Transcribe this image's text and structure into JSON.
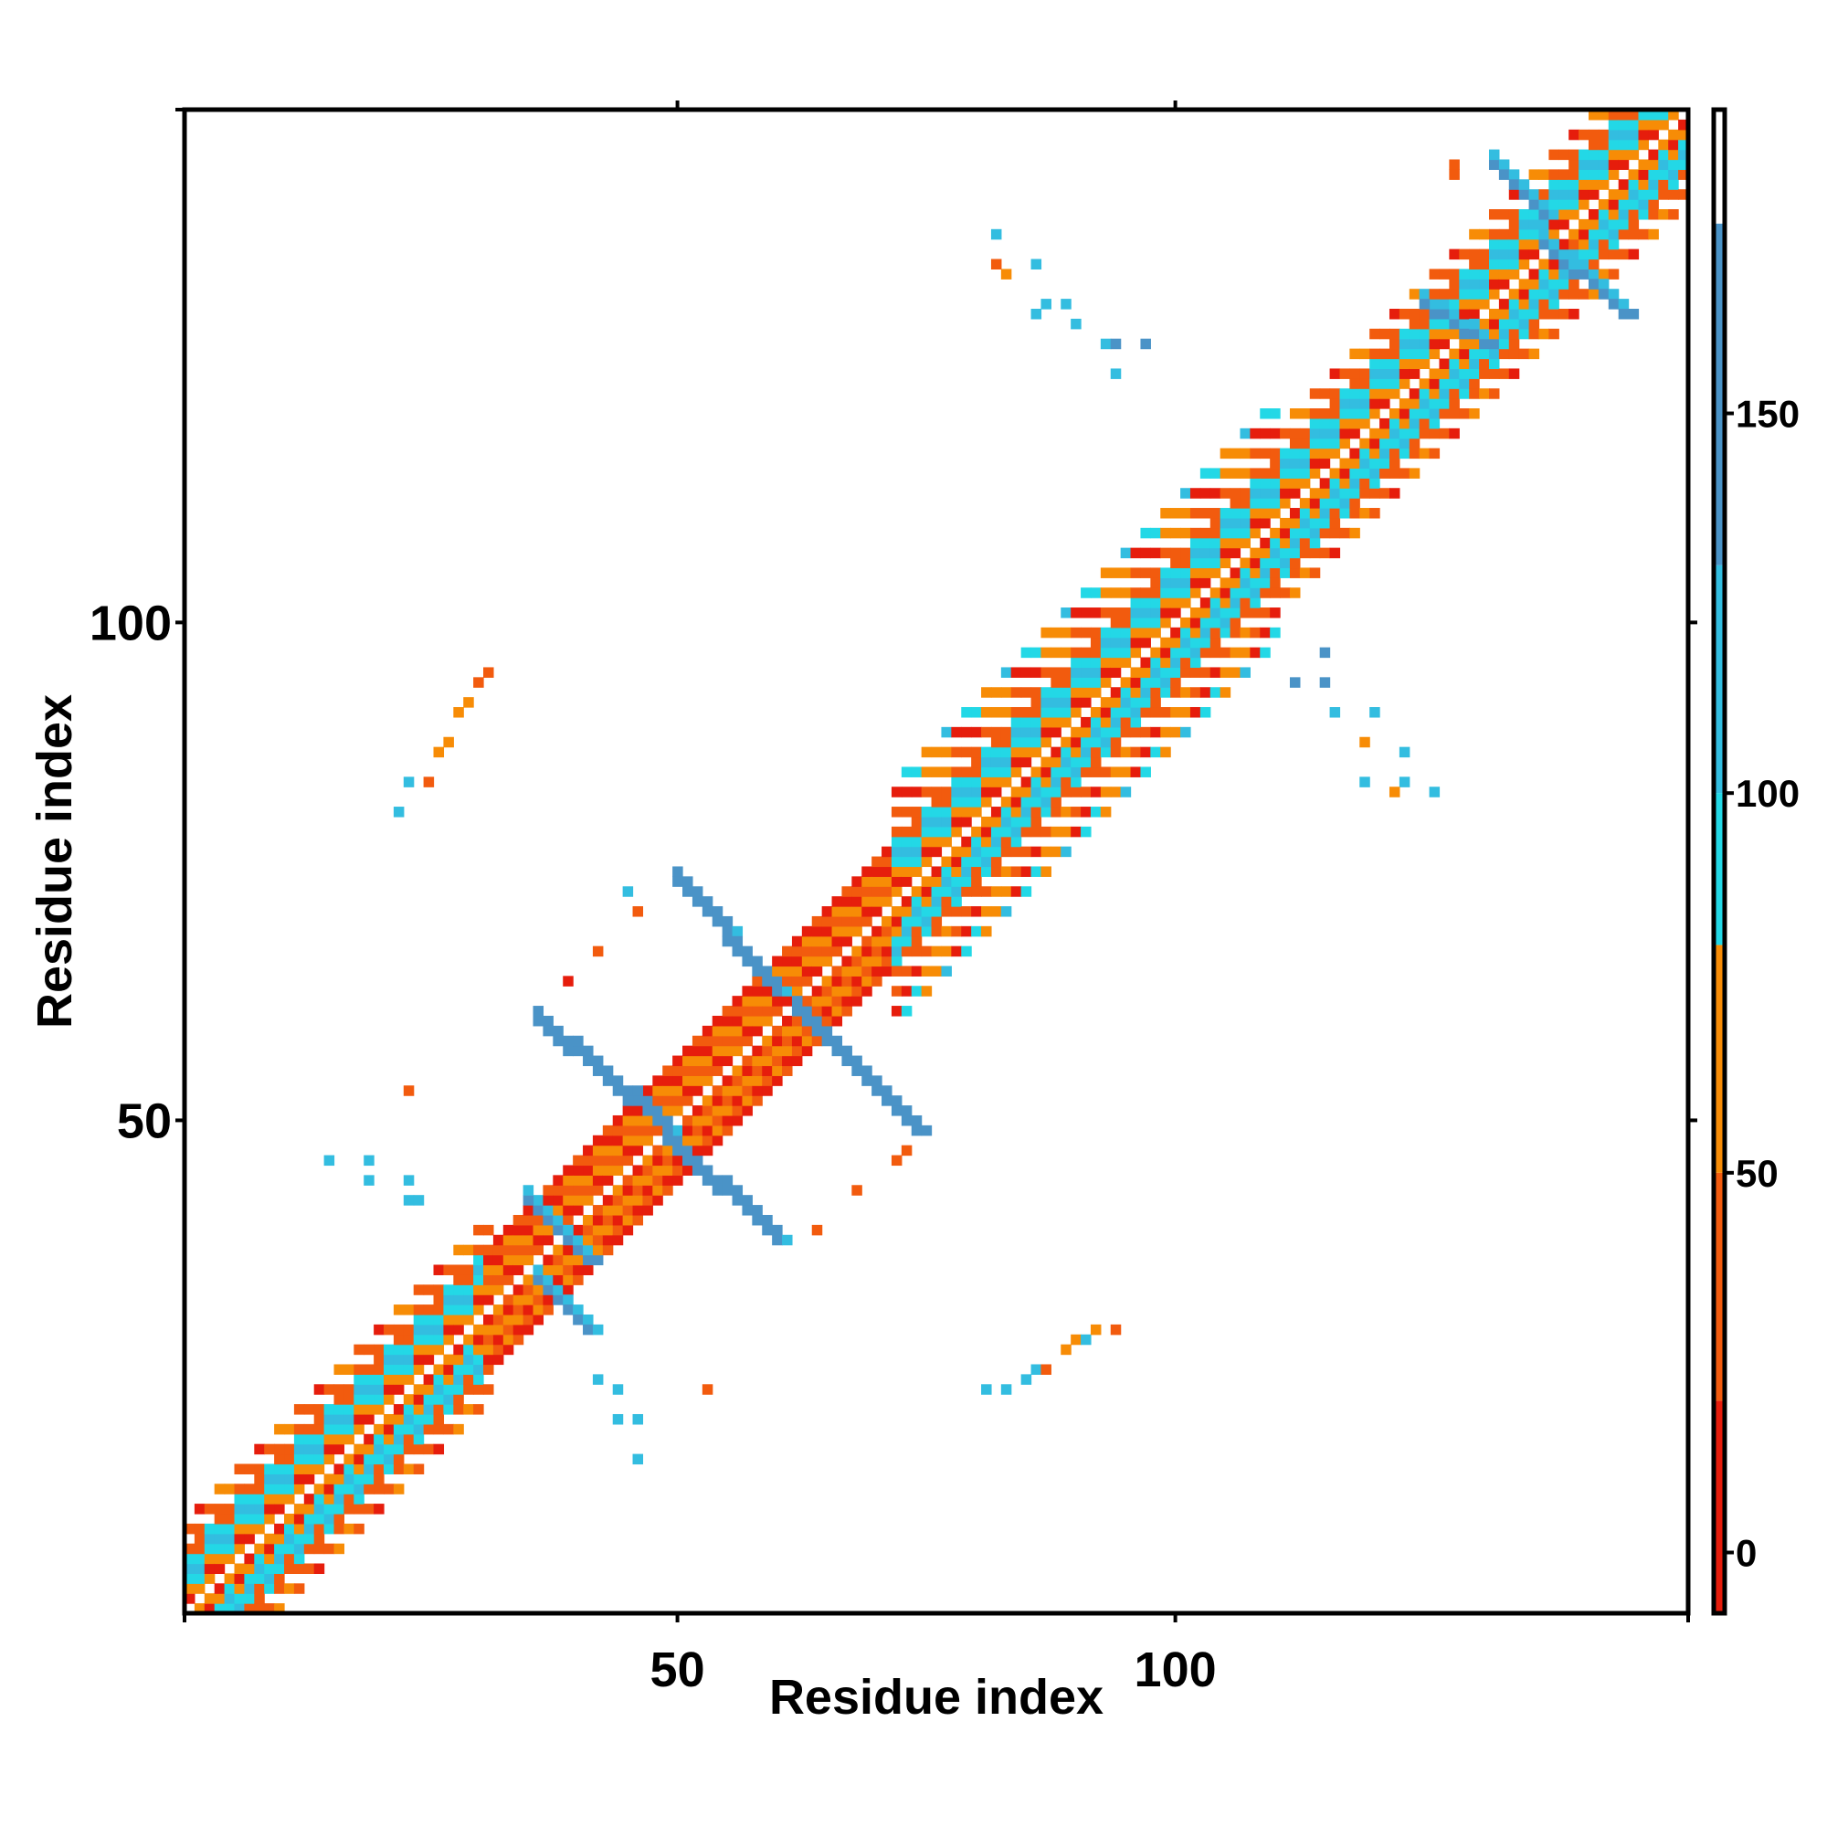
{
  "chart_data": {
    "type": "heatmap",
    "title": "",
    "xlabel": "Residue index",
    "ylabel": "Residue index",
    "xlim": [
      1,
      151
    ],
    "ylim": [
      1,
      151
    ],
    "x_ticks": [
      50,
      100
    ],
    "y_ticks": [
      50,
      100
    ],
    "x_tick_labels": [
      "50",
      "100"
    ],
    "y_tick_labels": [
      "50",
      "100"
    ],
    "colorbar": {
      "range": [
        -8,
        190
      ],
      "ticks": [
        0,
        50,
        100,
        150
      ],
      "tick_labels": [
        "0",
        "50",
        "100",
        "150"
      ],
      "segments": [
        {
          "from": -8,
          "to": 20,
          "color": "#e61d0c"
        },
        {
          "from": 20,
          "to": 50,
          "color": "#f25b0e"
        },
        {
          "from": 50,
          "to": 80,
          "color": "#f78c06"
        },
        {
          "from": 80,
          "to": 100,
          "color": "#23d8e6"
        },
        {
          "from": 100,
          "to": 130,
          "color": "#33bde0"
        },
        {
          "from": 130,
          "to": 175,
          "color": "#4a93c7"
        },
        {
          "from": 175,
          "to": 190,
          "color": "#ffffff"
        }
      ]
    },
    "diagonal_bands": [
      {
        "start": 1,
        "end": 31,
        "offsets": [
          -9,
          9
        ],
        "value_profile": [
          20,
          55,
          10,
          60,
          90,
          110,
          95,
          40,
          30
        ]
      },
      {
        "start": 31,
        "end": 72,
        "offsets": [
          -6,
          6
        ],
        "value_profile": [
          15,
          40,
          10,
          60,
          30,
          70
        ]
      },
      {
        "start": 72,
        "end": 110,
        "offsets": [
          -12,
          12
        ],
        "value_profile": [
          20,
          55,
          10,
          60,
          90,
          110,
          95,
          40,
          30
        ]
      },
      {
        "start": 110,
        "end": 151,
        "offsets": [
          -9,
          9
        ],
        "value_profile": [
          20,
          55,
          10,
          60,
          90,
          110,
          95,
          40,
          30
        ]
      }
    ],
    "antiparallel_segments": [
      {
        "x1": 35,
        "y1": 42,
        "x2": 41,
        "y2": 36,
        "value": 145
      },
      {
        "x1": 36,
        "y1": 34,
        "x2": 41,
        "y2": 29,
        "value": 145
      },
      {
        "x1": 36,
        "y1": 60,
        "x2": 49,
        "y2": 49,
        "value": 150
      },
      {
        "x1": 49,
        "y1": 48,
        "x2": 60,
        "y2": 38,
        "value": 150
      },
      {
        "x1": 50,
        "y1": 74,
        "x2": 60,
        "y2": 63,
        "value": 150
      },
      {
        "x1": 62,
        "y1": 61,
        "x2": 74,
        "y2": 49,
        "value": 150
      },
      {
        "x1": 132,
        "y1": 146,
        "x2": 137,
        "y2": 141,
        "value": 145
      },
      {
        "x1": 137,
        "y1": 138,
        "x2": 145,
        "y2": 131,
        "value": 145
      },
      {
        "x1": 125,
        "y1": 132,
        "x2": 131,
        "y2": 128,
        "value": 140
      }
    ],
    "scattered_contacts": [
      [
        22,
        81,
        105
      ],
      [
        23,
        84,
        105
      ],
      [
        25,
        84,
        45
      ],
      [
        26,
        87,
        60
      ],
      [
        27,
        88,
        70
      ],
      [
        28,
        91,
        65
      ],
      [
        29,
        92,
        70
      ],
      [
        30,
        94,
        40
      ],
      [
        31,
        95,
        20
      ],
      [
        45,
        73,
        100
      ],
      [
        46,
        71,
        30
      ],
      [
        42,
        67,
        30
      ],
      [
        39,
        64,
        15
      ],
      [
        23,
        53,
        30
      ],
      [
        15,
        46,
        110
      ],
      [
        19,
        46,
        110
      ],
      [
        19,
        44,
        110
      ],
      [
        23,
        44,
        110
      ],
      [
        23,
        42,
        110
      ],
      [
        24,
        42,
        110
      ],
      [
        42,
        24,
        110
      ],
      [
        44,
        23,
        110
      ],
      [
        44,
        20,
        110
      ],
      [
        46,
        20,
        110
      ],
      [
        46,
        16,
        110
      ],
      [
        53,
        23,
        30
      ],
      [
        81,
        23,
        105
      ],
      [
        83,
        23,
        105
      ],
      [
        85,
        24,
        100
      ],
      [
        86,
        25,
        100
      ],
      [
        87,
        25,
        40
      ],
      [
        89,
        27,
        60
      ],
      [
        90,
        28,
        70
      ],
      [
        91,
        28,
        100
      ],
      [
        92,
        29,
        60
      ],
      [
        94,
        29,
        20
      ],
      [
        82,
        139,
        105
      ],
      [
        82,
        136,
        45
      ],
      [
        83,
        135,
        70
      ],
      [
        86,
        136,
        105
      ],
      [
        86,
        131,
        105
      ],
      [
        87,
        132,
        110
      ],
      [
        89,
        132,
        105
      ],
      [
        90,
        130,
        105
      ],
      [
        93,
        128,
        105
      ],
      [
        94,
        128,
        145
      ],
      [
        97,
        128,
        140
      ],
      [
        94,
        125,
        110
      ],
      [
        115,
        97,
        145
      ],
      [
        112,
        94,
        130
      ],
      [
        115,
        94,
        130
      ],
      [
        116,
        91,
        110
      ],
      [
        120,
        91,
        105
      ],
      [
        119,
        88,
        60
      ],
      [
        123,
        87,
        110
      ],
      [
        119,
        84,
        110
      ],
      [
        123,
        84,
        110
      ],
      [
        122,
        83,
        60
      ],
      [
        126,
        83,
        110
      ],
      [
        140,
        138,
        40
      ],
      [
        128,
        146,
        40
      ],
      [
        128,
        145,
        40
      ],
      [
        64,
        39,
        30
      ],
      [
        68,
        43,
        30
      ],
      [
        72,
        46,
        25
      ],
      [
        73,
        47,
        30
      ]
    ]
  }
}
